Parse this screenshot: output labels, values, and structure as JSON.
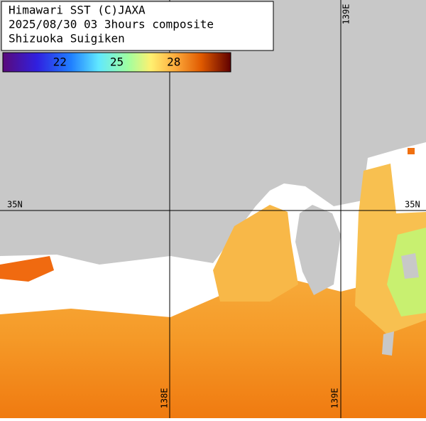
{
  "header": {
    "lines": [
      "Himawari SST (C)JAXA",
      "2025/08/30 03 3hours composite",
      "Shizuoka Suigiken"
    ]
  },
  "colorbar": {
    "range": [
      19,
      31
    ],
    "ticks": [
      22,
      25,
      28
    ]
  },
  "grid_labels": [
    "35N",
    "35N",
    "139E",
    "138E",
    "139E"
  ]
}
